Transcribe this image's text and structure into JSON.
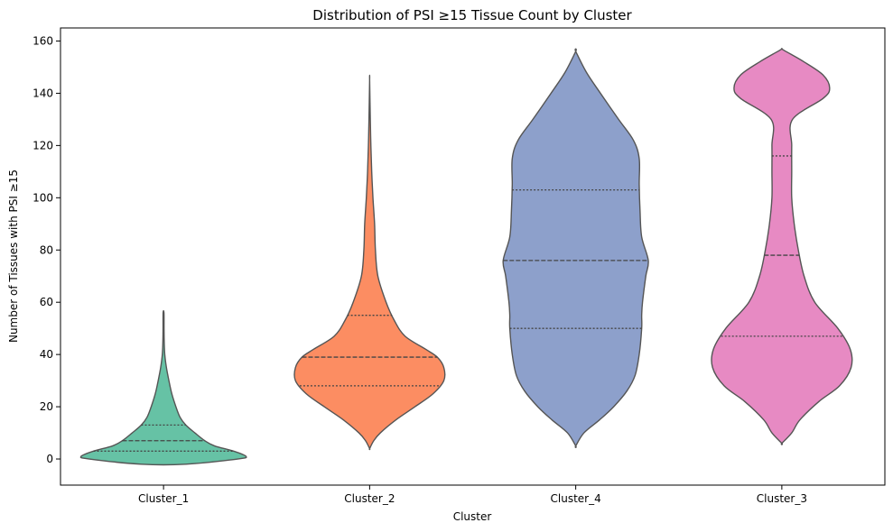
{
  "chart_data": {
    "type": "violin",
    "title": "Distribution of PSI ≥15 Tissue Count by Cluster",
    "xlabel": "Cluster",
    "ylabel": "Number of Tissues with PSI ≥15",
    "ylim": [
      -10,
      165
    ],
    "yticks": [
      0,
      20,
      40,
      60,
      80,
      100,
      120,
      140,
      160
    ],
    "grid": false,
    "categories": [
      "Cluster_1",
      "Cluster_2",
      "Cluster_4",
      "Cluster_3"
    ],
    "colors": [
      "#66c2a5",
      "#fc8d62",
      "#8da0cb",
      "#e78ac3"
    ],
    "inner": "quartile",
    "series": [
      {
        "category": "Cluster_1",
        "quartiles": [
          3,
          7,
          13
        ],
        "range": [
          -2,
          56
        ],
        "profile": [
          [
            -2,
            0.27
          ],
          [
            0,
            0.9
          ],
          [
            1,
            1.0
          ],
          [
            3,
            0.85
          ],
          [
            5,
            0.62
          ],
          [
            7,
            0.5
          ],
          [
            10,
            0.38
          ],
          [
            13,
            0.27
          ],
          [
            16,
            0.2
          ],
          [
            20,
            0.15
          ],
          [
            25,
            0.1
          ],
          [
            30,
            0.065
          ],
          [
            35,
            0.035
          ],
          [
            40,
            0.015
          ],
          [
            45,
            0.008
          ],
          [
            50,
            0.006
          ],
          [
            56,
            0.005
          ]
        ]
      },
      {
        "category": "Cluster_2",
        "quartiles": [
          28,
          39,
          55
        ],
        "range": [
          4,
          145
        ],
        "profile": [
          [
            4,
            0.0
          ],
          [
            7,
            0.05
          ],
          [
            10,
            0.13
          ],
          [
            15,
            0.32
          ],
          [
            20,
            0.55
          ],
          [
            25,
            0.77
          ],
          [
            30,
            0.9
          ],
          [
            35,
            0.9
          ],
          [
            39,
            0.82
          ],
          [
            42,
            0.68
          ],
          [
            47,
            0.43
          ],
          [
            53,
            0.3
          ],
          [
            60,
            0.2
          ],
          [
            70,
            0.1
          ],
          [
            80,
            0.07
          ],
          [
            90,
            0.06
          ],
          [
            100,
            0.04
          ],
          [
            110,
            0.025
          ],
          [
            120,
            0.015
          ],
          [
            130,
            0.008
          ],
          [
            145,
            0.0
          ]
        ]
      },
      {
        "category": "Cluster_4",
        "quartiles": [
          50,
          76,
          103
        ],
        "range": [
          5,
          156
        ],
        "profile": [
          [
            5,
            0.0
          ],
          [
            10,
            0.1
          ],
          [
            15,
            0.29
          ],
          [
            20,
            0.46
          ],
          [
            26,
            0.62
          ],
          [
            32,
            0.72
          ],
          [
            40,
            0.77
          ],
          [
            50,
            0.8
          ],
          [
            55,
            0.8
          ],
          [
            60,
            0.81
          ],
          [
            70,
            0.85
          ],
          [
            76,
            0.88
          ],
          [
            85,
            0.8
          ],
          [
            95,
            0.78
          ],
          [
            105,
            0.77
          ],
          [
            115,
            0.77
          ],
          [
            122,
            0.7
          ],
          [
            130,
            0.52
          ],
          [
            140,
            0.3
          ],
          [
            148,
            0.13
          ],
          [
            156,
            0.0
          ]
        ]
      },
      {
        "category": "Cluster_3",
        "quartiles": [
          47,
          78,
          116
        ],
        "range": [
          6,
          157
        ],
        "profile": [
          [
            6,
            0.0
          ],
          [
            10,
            0.12
          ],
          [
            15,
            0.22
          ],
          [
            22,
            0.45
          ],
          [
            28,
            0.7
          ],
          [
            35,
            0.84
          ],
          [
            42,
            0.83
          ],
          [
            50,
            0.68
          ],
          [
            60,
            0.4
          ],
          [
            70,
            0.27
          ],
          [
            80,
            0.2
          ],
          [
            90,
            0.15
          ],
          [
            100,
            0.12
          ],
          [
            110,
            0.12
          ],
          [
            120,
            0.12
          ],
          [
            130,
            0.13
          ],
          [
            138,
            0.5
          ],
          [
            142,
            0.58
          ],
          [
            147,
            0.5
          ],
          [
            152,
            0.27
          ],
          [
            156,
            0.05
          ],
          [
            157,
            0.0
          ]
        ]
      }
    ]
  }
}
